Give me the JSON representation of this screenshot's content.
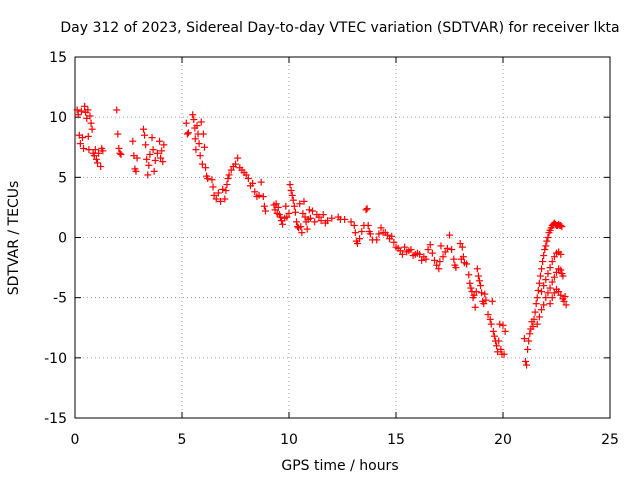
{
  "chart_data": {
    "type": "scatter",
    "title": "Day 312 of 2023, Sidereal Day-to-day VTEC variation (SDTVAR) for receiver lkta",
    "xlabel": "GPS time / hours",
    "ylabel": "SDTVAR / TECUs",
    "xlim": [
      0,
      25
    ],
    "ylim": [
      -15,
      15
    ],
    "xticks": [
      0,
      5,
      10,
      15,
      20,
      25
    ],
    "yticks": [
      -15,
      -10,
      -5,
      0,
      5,
      10,
      15
    ],
    "xtick_labels": [
      "0",
      "5",
      "10",
      "15",
      "20",
      "25"
    ],
    "ytick_labels": [
      "-15",
      "-10",
      "-5",
      "0",
      "5",
      "10",
      "15"
    ],
    "grid": true,
    "marker": "+",
    "color": "#ff0000",
    "series": [
      {
        "name": "SDTVAR",
        "points": [
          [
            0.1,
            10.6
          ],
          [
            0.15,
            10.2
          ],
          [
            0.2,
            8.5
          ],
          [
            0.25,
            7.8
          ],
          [
            0.3,
            10.5
          ],
          [
            0.35,
            8.3
          ],
          [
            0.4,
            7.4
          ],
          [
            0.45,
            10.9
          ],
          [
            0.5,
            10.4
          ],
          [
            0.55,
            9.9
          ],
          [
            0.6,
            10.6
          ],
          [
            0.62,
            8.4
          ],
          [
            0.65,
            7.3
          ],
          [
            0.7,
            10.1
          ],
          [
            0.75,
            9.5
          ],
          [
            0.8,
            9.0
          ],
          [
            0.85,
            7.0
          ],
          [
            0.9,
            6.8
          ],
          [
            0.95,
            7.3
          ],
          [
            1.0,
            6.5
          ],
          [
            1.05,
            6.2
          ],
          [
            1.1,
            7.0
          ],
          [
            1.2,
            5.9
          ],
          [
            1.25,
            7.4
          ],
          [
            1.3,
            7.2
          ],
          [
            1.95,
            10.6
          ],
          [
            2.0,
            8.6
          ],
          [
            2.05,
            7.4
          ],
          [
            2.1,
            7.0
          ],
          [
            2.15,
            6.9
          ],
          [
            2.7,
            8.0
          ],
          [
            2.75,
            6.8
          ],
          [
            2.8,
            5.7
          ],
          [
            2.85,
            5.5
          ],
          [
            2.9,
            6.6
          ],
          [
            3.2,
            9.0
          ],
          [
            3.25,
            8.5
          ],
          [
            3.3,
            7.7
          ],
          [
            3.35,
            6.5
          ],
          [
            3.4,
            5.2
          ],
          [
            3.45,
            6.0
          ],
          [
            3.5,
            6.9
          ],
          [
            3.6,
            8.3
          ],
          [
            3.65,
            7.3
          ],
          [
            3.7,
            5.5
          ],
          [
            3.75,
            6.4
          ],
          [
            3.85,
            7.0
          ],
          [
            3.95,
            8.0
          ],
          [
            4.0,
            6.6
          ],
          [
            4.05,
            7.2
          ],
          [
            4.1,
            6.3
          ],
          [
            4.15,
            7.7
          ],
          [
            5.2,
            9.5
          ],
          [
            5.25,
            8.6
          ],
          [
            5.3,
            8.7
          ],
          [
            5.5,
            10.2
          ],
          [
            5.55,
            9.8
          ],
          [
            5.6,
            9.1
          ],
          [
            5.62,
            8.2
          ],
          [
            5.65,
            7.3
          ],
          [
            5.7,
            9.3
          ],
          [
            5.75,
            8.6
          ],
          [
            5.8,
            7.8
          ],
          [
            5.85,
            6.8
          ],
          [
            5.9,
            9.6
          ],
          [
            5.95,
            6.1
          ],
          [
            6.0,
            8.6
          ],
          [
            6.05,
            7.5
          ],
          [
            6.1,
            5.8
          ],
          [
            6.15,
            5.1
          ],
          [
            6.2,
            4.9
          ],
          [
            6.4,
            4.8
          ],
          [
            6.45,
            4.2
          ],
          [
            6.5,
            3.5
          ],
          [
            6.6,
            3.2
          ],
          [
            6.7,
            3.7
          ],
          [
            6.8,
            3.0
          ],
          [
            6.9,
            4.0
          ],
          [
            7.0,
            3.2
          ],
          [
            7.05,
            3.9
          ],
          [
            7.1,
            4.4
          ],
          [
            7.15,
            4.9
          ],
          [
            7.2,
            5.2
          ],
          [
            7.3,
            5.6
          ],
          [
            7.4,
            5.9
          ],
          [
            7.5,
            6.1
          ],
          [
            7.6,
            6.6
          ],
          [
            7.7,
            5.8
          ],
          [
            7.8,
            5.6
          ],
          [
            7.9,
            5.4
          ],
          [
            8.0,
            5.2
          ],
          [
            8.1,
            4.9
          ],
          [
            8.2,
            4.3
          ],
          [
            8.3,
            4.5
          ],
          [
            8.4,
            3.8
          ],
          [
            8.5,
            3.4
          ],
          [
            8.6,
            3.5
          ],
          [
            8.7,
            4.6
          ],
          [
            8.8,
            3.4
          ],
          [
            8.85,
            2.6
          ],
          [
            8.9,
            2.2
          ],
          [
            9.3,
            2.7
          ],
          [
            9.35,
            2.3
          ],
          [
            9.4,
            2.8
          ],
          [
            9.45,
            2.0
          ],
          [
            9.5,
            2.5
          ],
          [
            9.55,
            1.9
          ],
          [
            9.6,
            1.7
          ],
          [
            9.65,
            1.4
          ],
          [
            9.7,
            1.1
          ],
          [
            9.8,
            1.6
          ],
          [
            9.85,
            2.6
          ],
          [
            9.9,
            1.7
          ],
          [
            10.0,
            2.0
          ],
          [
            10.05,
            4.4
          ],
          [
            10.1,
            3.9
          ],
          [
            10.15,
            3.5
          ],
          [
            10.2,
            3.1
          ],
          [
            10.25,
            2.6
          ],
          [
            10.3,
            2.1
          ],
          [
            10.35,
            1.3
          ],
          [
            10.4,
            0.9
          ],
          [
            10.45,
            0.8
          ],
          [
            10.5,
            2.8
          ],
          [
            10.55,
            0.9
          ],
          [
            10.6,
            0.4
          ],
          [
            10.65,
            2.0
          ],
          [
            10.7,
            3.0
          ],
          [
            10.75,
            1.7
          ],
          [
            10.8,
            1.3
          ],
          [
            10.85,
            0.7
          ],
          [
            10.9,
            1.5
          ],
          [
            10.95,
            2.3
          ],
          [
            11.0,
            1.6
          ],
          [
            11.1,
            2.2
          ],
          [
            11.2,
            1.3
          ],
          [
            11.3,
            1.9
          ],
          [
            11.4,
            1.7
          ],
          [
            11.5,
            1.4
          ],
          [
            11.6,
            1.9
          ],
          [
            11.7,
            1.2
          ],
          [
            11.8,
            1.4
          ],
          [
            12.0,
            1.6
          ],
          [
            12.3,
            1.7
          ],
          [
            12.4,
            1.5
          ],
          [
            12.6,
            1.5
          ],
          [
            12.9,
            1.3
          ],
          [
            13.05,
            1.0
          ],
          [
            13.1,
            0.4
          ],
          [
            13.15,
            -0.3
          ],
          [
            13.2,
            -0.5
          ],
          [
            13.3,
            -0.1
          ],
          [
            13.4,
            0.5
          ],
          [
            13.5,
            1.0
          ],
          [
            13.6,
            2.3
          ],
          [
            13.65,
            2.4
          ],
          [
            13.7,
            1.0
          ],
          [
            13.75,
            0.5
          ],
          [
            13.8,
            0.3
          ],
          [
            13.9,
            -0.2
          ],
          [
            14.1,
            -0.2
          ],
          [
            14.2,
            0.3
          ],
          [
            14.3,
            0.8
          ],
          [
            14.4,
            0.4
          ],
          [
            14.5,
            0.4
          ],
          [
            14.6,
            0.2
          ],
          [
            14.7,
            -0.1
          ],
          [
            14.8,
            0.1
          ],
          [
            14.9,
            -0.4
          ],
          [
            15.0,
            -0.8
          ],
          [
            15.1,
            -0.9
          ],
          [
            15.2,
            -1.1
          ],
          [
            15.3,
            -1.4
          ],
          [
            15.4,
            -0.8
          ],
          [
            15.5,
            -1.2
          ],
          [
            15.6,
            -1.1
          ],
          [
            15.7,
            -1.0
          ],
          [
            15.8,
            -1.5
          ],
          [
            15.9,
            -1.4
          ],
          [
            16.0,
            -1.3
          ],
          [
            16.1,
            -1.4
          ],
          [
            16.2,
            -1.9
          ],
          [
            16.3,
            -1.6
          ],
          [
            16.4,
            -1.8
          ],
          [
            16.5,
            -1.0
          ],
          [
            16.6,
            -0.6
          ],
          [
            16.7,
            -1.3
          ],
          [
            16.8,
            -1.9
          ],
          [
            16.9,
            -2.3
          ],
          [
            17.0,
            -2.6
          ],
          [
            17.05,
            -2.0
          ],
          [
            17.1,
            -0.7
          ],
          [
            17.2,
            -1.6
          ],
          [
            17.3,
            -1.2
          ],
          [
            17.4,
            -0.9
          ],
          [
            17.5,
            0.2
          ],
          [
            17.6,
            -1.0
          ],
          [
            17.7,
            -1.8
          ],
          [
            17.75,
            -2.3
          ],
          [
            17.8,
            -2.5
          ],
          [
            18.0,
            -0.5
          ],
          [
            18.05,
            -1.8
          ],
          [
            18.1,
            -0.8
          ],
          [
            18.15,
            -1.6
          ],
          [
            18.2,
            -2.1
          ],
          [
            18.3,
            -2.2
          ],
          [
            18.4,
            -3.1
          ],
          [
            18.45,
            -3.8
          ],
          [
            18.5,
            -4.2
          ],
          [
            18.55,
            -4.5
          ],
          [
            18.6,
            -5.0
          ],
          [
            18.65,
            -4.8
          ],
          [
            18.7,
            -5.8
          ],
          [
            18.75,
            -4.5
          ],
          [
            18.8,
            -2.6
          ],
          [
            18.85,
            -3.2
          ],
          [
            18.9,
            -3.6
          ],
          [
            18.95,
            -4.0
          ],
          [
            19.0,
            -4.6
          ],
          [
            19.05,
            -5.3
          ],
          [
            19.1,
            -5.5
          ],
          [
            19.15,
            -4.7
          ],
          [
            19.2,
            -5.2
          ],
          [
            19.3,
            -6.4
          ],
          [
            19.4,
            -6.8
          ],
          [
            19.45,
            -7.2
          ],
          [
            19.5,
            -5.3
          ],
          [
            19.55,
            -7.8
          ],
          [
            19.6,
            -8.2
          ],
          [
            19.65,
            -8.6
          ],
          [
            19.7,
            -9.0
          ],
          [
            19.75,
            -9.5
          ],
          [
            19.8,
            -8.6
          ],
          [
            19.85,
            -7.2
          ],
          [
            19.9,
            -9.3
          ],
          [
            19.95,
            -9.7
          ],
          [
            20.0,
            -7.3
          ],
          [
            20.05,
            -9.7
          ],
          [
            20.1,
            -7.8
          ],
          [
            21.0,
            -8.4
          ],
          [
            21.05,
            -10.3
          ],
          [
            21.1,
            -10.6
          ],
          [
            21.15,
            -9.3
          ],
          [
            21.2,
            -8.6
          ],
          [
            21.25,
            -8.0
          ],
          [
            21.3,
            -7.6
          ],
          [
            21.35,
            -7.0
          ],
          [
            21.4,
            -7.4
          ],
          [
            21.45,
            -6.8
          ],
          [
            21.5,
            -6.2
          ],
          [
            21.55,
            -5.5
          ],
          [
            21.6,
            -5.0
          ],
          [
            21.65,
            -4.4
          ],
          [
            21.7,
            -3.8
          ],
          [
            21.75,
            -3.2
          ],
          [
            21.8,
            -2.6
          ],
          [
            21.85,
            -2.0
          ],
          [
            21.9,
            -1.5
          ],
          [
            21.95,
            -1.0
          ],
          [
            22.0,
            -0.7
          ],
          [
            22.05,
            -0.3
          ],
          [
            22.1,
            0.0
          ],
          [
            22.15,
            0.4
          ],
          [
            22.2,
            0.6
          ],
          [
            22.25,
            0.8
          ],
          [
            22.3,
            1.0
          ],
          [
            22.35,
            1.1
          ],
          [
            22.4,
            1.2
          ],
          [
            22.45,
            1.1
          ],
          [
            22.5,
            1.0
          ],
          [
            22.55,
            1.0
          ],
          [
            22.6,
            1.1
          ],
          [
            22.65,
            1.0
          ],
          [
            22.7,
            1.0
          ],
          [
            22.75,
            0.9
          ],
          [
            21.6,
            -7.2
          ],
          [
            21.7,
            -6.6
          ],
          [
            21.8,
            -6.0
          ],
          [
            21.9,
            -5.6
          ],
          [
            22.0,
            -5.0
          ],
          [
            22.1,
            -4.6
          ],
          [
            22.2,
            -4.2
          ],
          [
            22.3,
            -3.7
          ],
          [
            22.4,
            -3.3
          ],
          [
            22.5,
            -2.9
          ],
          [
            22.6,
            -2.6
          ],
          [
            22.7,
            -2.7
          ],
          [
            22.75,
            -3.0
          ],
          [
            22.8,
            -3.2
          ],
          [
            21.8,
            -4.5
          ],
          [
            21.9,
            -4.0
          ],
          [
            22.0,
            -3.5
          ],
          [
            22.1,
            -3.0
          ],
          [
            22.2,
            -2.5
          ],
          [
            22.3,
            -2.0
          ],
          [
            22.4,
            -1.6
          ],
          [
            22.5,
            -1.3
          ],
          [
            22.6,
            -1.2
          ],
          [
            22.7,
            -1.4
          ],
          [
            22.2,
            -5.5
          ],
          [
            22.3,
            -5.0
          ],
          [
            22.4,
            -4.6
          ],
          [
            22.5,
            -4.3
          ],
          [
            22.6,
            -4.5
          ],
          [
            22.7,
            -4.8
          ],
          [
            22.8,
            -5.1
          ],
          [
            22.85,
            -5.3
          ],
          [
            22.9,
            -4.9
          ],
          [
            22.95,
            -5.6
          ]
        ]
      }
    ]
  }
}
